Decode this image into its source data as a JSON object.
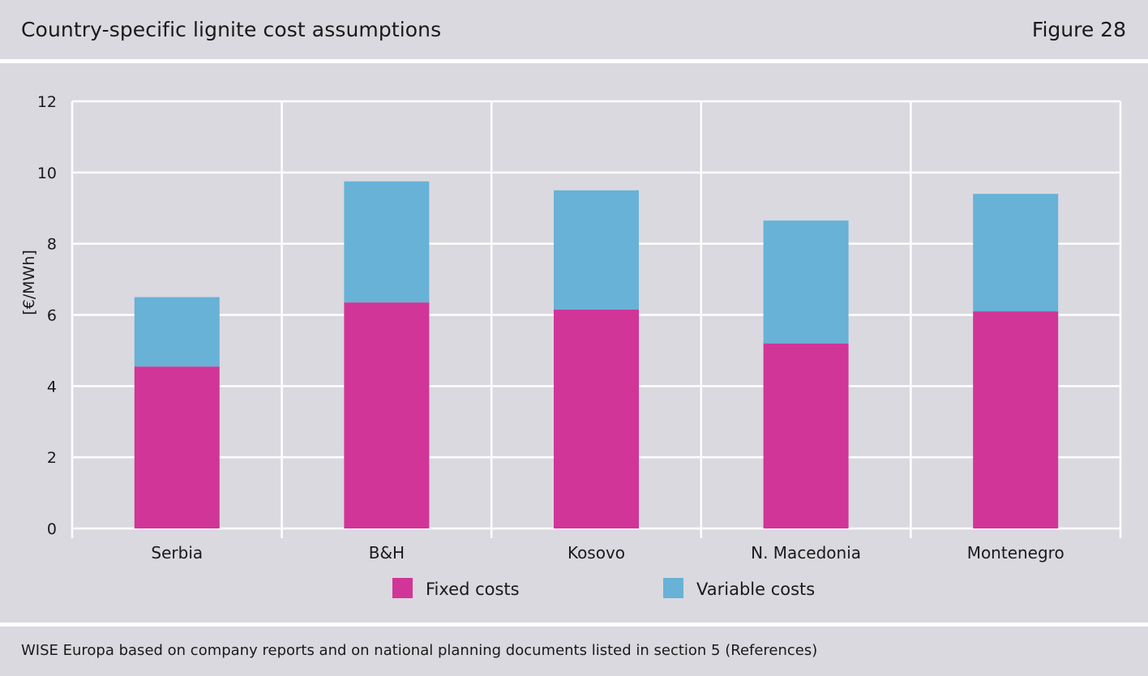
{
  "header": {
    "title": "Country-specific lignite cost assumptions",
    "figure_label": "Figure 28"
  },
  "source_note": "WISE Europa based on company reports and on national planning documents listed in section 5 (References)",
  "colors": {
    "fixed": "#d13597",
    "variable": "#67b2d6",
    "grid": "#ffffff",
    "background": "#dad9df"
  },
  "chart_data": {
    "type": "bar",
    "stacked": true,
    "title": "Country-specific lignite cost assumptions",
    "xlabel": "",
    "ylabel": "[€/MWh]",
    "ylim": [
      0,
      12
    ],
    "yticks": [
      0,
      2,
      4,
      6,
      8,
      10,
      12
    ],
    "grid": true,
    "legend_position": "bottom",
    "categories": [
      "Serbia",
      "B&H",
      "Kosovo",
      "N. Macedonia",
      "Montenegro"
    ],
    "series": [
      {
        "name": "Fixed costs",
        "values": [
          4.55,
          6.35,
          6.15,
          5.2,
          6.1
        ]
      },
      {
        "name": "Variable costs",
        "values": [
          1.95,
          3.4,
          3.35,
          3.45,
          3.3
        ]
      }
    ]
  }
}
